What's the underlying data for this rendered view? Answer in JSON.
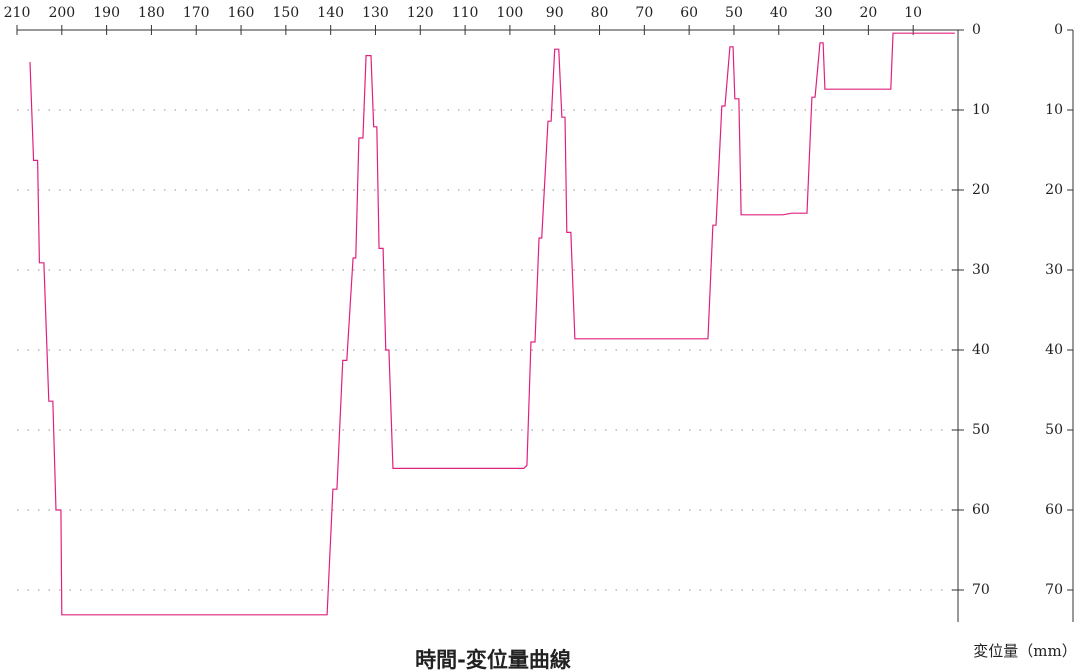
{
  "chart_data": {
    "type": "line",
    "title": "時間-変位量曲線",
    "y_label": "変位量（mm）",
    "xlim": [
      210,
      0
    ],
    "xticks": [
      210,
      200,
      190,
      180,
      170,
      160,
      150,
      140,
      130,
      120,
      110,
      100,
      90,
      80,
      70,
      60,
      50,
      40,
      30,
      20,
      10
    ],
    "ylim": [
      0,
      74
    ],
    "yticks": [
      0,
      10,
      20,
      30,
      40,
      50,
      60,
      70
    ],
    "y_inverted": true,
    "grid": true,
    "series": [
      {
        "color": "#e0207f",
        "x": [
          207.1,
          206.3,
          205.4,
          205.0,
          204.0,
          202.9,
          202.0,
          201.3,
          200.2,
          200.0,
          140.8,
          139.5,
          138.6,
          137.3,
          136.4,
          135.0,
          134.4,
          133.7,
          132.8,
          132.1,
          131.0,
          130.4,
          129.7,
          129.2,
          128.3,
          127.7,
          127.0,
          126.1,
          96.9,
          96.2,
          95.3,
          94.4,
          93.5,
          92.9,
          91.5,
          90.8,
          90.0,
          89.1,
          88.4,
          87.7,
          87.3,
          86.4,
          85.5,
          55.8,
          54.7,
          54.0,
          52.7,
          52.0,
          50.9,
          50.2,
          49.8,
          48.9,
          48.4,
          39.1,
          37.1,
          33.7,
          32.6,
          31.9,
          30.8,
          30.1,
          29.7,
          15.0,
          14.5,
          0.7
        ],
        "values": [
          4,
          16.3,
          16.3,
          29.1,
          29.1,
          46.4,
          46.4,
          60,
          60,
          73.1,
          73.1,
          57.4,
          57.4,
          41.3,
          41.3,
          28.5,
          28.5,
          13.5,
          13.5,
          3.2,
          3.2,
          12.1,
          12.1,
          27.3,
          27.3,
          40,
          40,
          54.8,
          54.8,
          54.4,
          39,
          39,
          26,
          26,
          11.4,
          11.4,
          2.4,
          2.4,
          10.9,
          10.9,
          25.3,
          25.3,
          38.6,
          38.6,
          24.4,
          24.4,
          9.5,
          9.5,
          2.1,
          2.1,
          8.6,
          8.6,
          23.1,
          23.1,
          22.9,
          22.9,
          8.4,
          8.4,
          1.6,
          1.6,
          7.4,
          7.4,
          0.4,
          0.4
        ]
      }
    ]
  }
}
